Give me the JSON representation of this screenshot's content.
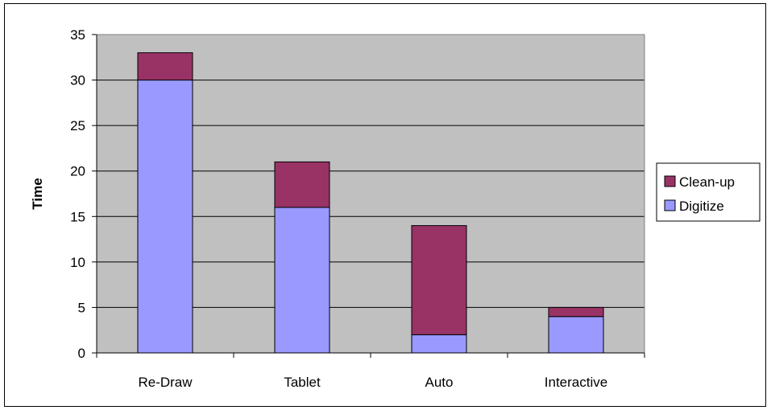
{
  "chart_data": {
    "type": "bar",
    "stacked": true,
    "title": "",
    "xlabel": "",
    "ylabel": "Time",
    "categories": [
      "Re-Draw",
      "Tablet",
      "Auto",
      "Interactive"
    ],
    "series": [
      {
        "name": "Digitize",
        "values": [
          30,
          16,
          2,
          4
        ],
        "color": "#9999ff"
      },
      {
        "name": "Clean-up",
        "values": [
          3,
          5,
          12,
          1
        ],
        "color": "#993366"
      }
    ],
    "ylim": [
      0,
      35
    ],
    "yticks": [
      0,
      5,
      10,
      15,
      20,
      25,
      30,
      35
    ],
    "grid": true,
    "plot_background": "#c0c0c0",
    "legend": {
      "position": "right",
      "order": [
        "Clean-up",
        "Digitize"
      ]
    }
  }
}
